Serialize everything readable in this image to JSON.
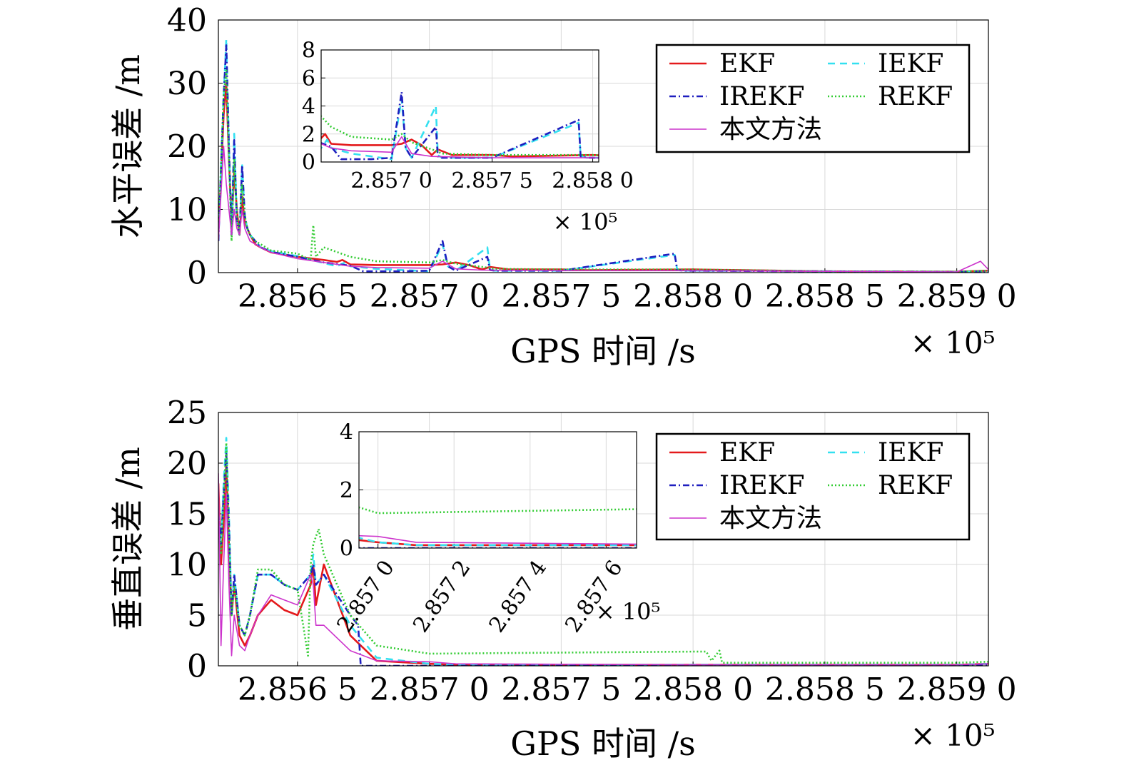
{
  "colors": {
    "EKF": "#e41a1c",
    "IREKF": "#1f1fbf",
    "method": "#cc33cc",
    "IEKF": "#33e0f0",
    "REKF": "#33cc33",
    "grid": "#d9d9d9",
    "frame": "#000000"
  },
  "chart_data": [
    {
      "type": "line",
      "ylabel": "水平误差 /m",
      "xlabel": "GPS 时间 /s",
      "multiplier": "× 10⁵",
      "xlim": [
        2.8562,
        2.85912
      ],
      "ylim": [
        0,
        40
      ],
      "xticks": [
        2.8565,
        2.857,
        2.8575,
        2.858,
        2.8585,
        2.859
      ],
      "xtick_labels": [
        "2.856 5",
        "2.857 0",
        "2.857 5",
        "2.858 0",
        "2.858 5",
        "2.859 0"
      ],
      "yticks": [
        0,
        10,
        20,
        30,
        40
      ],
      "ytick_labels": [
        "0",
        "10",
        "20",
        "30",
        "40"
      ],
      "legend": {
        "position": "top-right",
        "entries": [
          {
            "key": "EKF",
            "label": "EKF"
          },
          {
            "key": "IEKF",
            "label": "IEKF"
          },
          {
            "key": "IREKF",
            "label": "IREKF"
          },
          {
            "key": "REKF",
            "label": "REKF"
          },
          {
            "key": "method",
            "label": "本文方法"
          }
        ]
      },
      "series": [
        {
          "name": "EKF",
          "key": "EKF",
          "x": [
            2.8562,
            2.85622,
            2.85623,
            2.85624,
            2.85625,
            2.85626,
            2.85627,
            2.85628,
            2.85629,
            2.8563,
            2.85631,
            2.85632,
            2.85634,
            2.85636,
            2.8564,
            2.8565,
            2.8566,
            2.85665,
            2.85667,
            2.8567,
            2.8568,
            2.8569,
            2.857,
            2.85705,
            2.8571,
            2.85715,
            2.8572,
            2.85723,
            2.8573,
            2.8575,
            2.8576,
            2.858,
            2.8585,
            2.859,
            2.85912
          ],
          "y": [
            6,
            25,
            30,
            18,
            8,
            16,
            10,
            6,
            12,
            8,
            7,
            6,
            4.5,
            4,
            3.2,
            2.5,
            2.0,
            1.7,
            2.0,
            1.3,
            1.2,
            1.2,
            1.2,
            1.3,
            1.6,
            1.2,
            0.5,
            0.9,
            0.5,
            0.5,
            0.4,
            0.5,
            0.2,
            0.15,
            0.3
          ]
        },
        {
          "name": "IEKF",
          "key": "IEKF",
          "x": [
            2.8562,
            2.85622,
            2.85623,
            2.85624,
            2.85625,
            2.85626,
            2.85627,
            2.85628,
            2.85629,
            2.8563,
            2.85631,
            2.85632,
            2.85634,
            2.85636,
            2.8564,
            2.8565,
            2.8566,
            2.85665,
            2.85668,
            2.8567,
            2.8568,
            2.857,
            2.85705,
            2.85707,
            2.8571,
            2.85722,
            2.85723,
            2.85725,
            2.8575,
            2.85793,
            2.85794,
            2.85797,
            2.858,
            2.8585,
            2.859,
            2.85912
          ],
          "y": [
            5,
            28,
            37,
            20,
            6,
            22,
            8,
            6,
            17,
            9,
            7,
            6,
            5,
            4,
            3.4,
            2.6,
            1.5,
            1.0,
            1.6,
            1.0,
            0.6,
            0.2,
            4.5,
            1.0,
            0.3,
            4.0,
            0.5,
            0.3,
            0.3,
            2.8,
            0.4,
            0.3,
            0.3,
            0.2,
            0.1,
            0.2
          ]
        },
        {
          "name": "IREKF",
          "key": "IREKF",
          "x": [
            2.8562,
            2.85622,
            2.85623,
            2.85624,
            2.85625,
            2.85626,
            2.85627,
            2.85628,
            2.85629,
            2.8563,
            2.85631,
            2.85632,
            2.85634,
            2.85636,
            2.8564,
            2.8565,
            2.8566,
            2.8567,
            2.85675,
            2.8569,
            2.857,
            2.85705,
            2.85707,
            2.8571,
            2.85722,
            2.85723,
            2.85725,
            2.8575,
            2.85793,
            2.85794,
            2.85797,
            2.858,
            2.8585,
            2.859,
            2.85912
          ],
          "y": [
            5,
            28,
            36,
            20,
            6,
            21,
            8,
            6,
            17,
            9,
            7,
            6,
            5,
            4,
            3.3,
            2.5,
            1.6,
            1.1,
            0.2,
            0.2,
            0.3,
            5.0,
            1.0,
            0.3,
            2.5,
            0.4,
            0.3,
            0.3,
            3.0,
            0.4,
            0.3,
            0.3,
            0.2,
            0.1,
            0.2
          ]
        },
        {
          "name": "REKF",
          "key": "REKF",
          "x": [
            2.8562,
            2.85622,
            2.85623,
            2.85624,
            2.85625,
            2.85626,
            2.85627,
            2.85628,
            2.85629,
            2.8563,
            2.85631,
            2.85632,
            2.85634,
            2.85636,
            2.8564,
            2.8565,
            2.85655,
            2.85656,
            2.85657,
            2.8566,
            2.8567,
            2.8568,
            2.857,
            2.85705,
            2.8571,
            2.85722,
            2.85725,
            2.8575,
            2.858,
            2.8585,
            2.859,
            2.85912
          ],
          "y": [
            6,
            28,
            32,
            18,
            5,
            18,
            9,
            6,
            14,
            9,
            7,
            6,
            5,
            4.5,
            3.5,
            3.0,
            2.0,
            7.5,
            2.5,
            4.0,
            2.5,
            1.8,
            1.6,
            2.0,
            1.4,
            0.8,
            0.6,
            0.5,
            0.5,
            0.2,
            0.15,
            0.3
          ]
        },
        {
          "name": "本文方法",
          "key": "method",
          "x": [
            2.8562,
            2.85622,
            2.85623,
            2.85624,
            2.85625,
            2.85626,
            2.85627,
            2.85628,
            2.85629,
            2.8563,
            2.85631,
            2.85632,
            2.85634,
            2.85636,
            2.8564,
            2.8565,
            2.8566,
            2.8567,
            2.8568,
            2.857,
            2.85705,
            2.8571,
            2.8572,
            2.8575,
            2.858,
            2.8585,
            2.859,
            2.85909,
            2.85912
          ],
          "y": [
            5,
            20,
            14,
            10,
            6,
            10,
            7,
            6,
            10,
            7,
            6,
            5,
            4.5,
            4,
            3.2,
            2.2,
            1.6,
            1.0,
            0.8,
            0.7,
            1.8,
            0.6,
            0.4,
            0.3,
            0.3,
            0.2,
            0.1,
            1.8,
            0.5
          ]
        }
      ],
      "inset": {
        "xlim": [
          2.85665,
          2.85803
        ],
        "ylim": [
          0,
          8
        ],
        "xticks": [
          2.857,
          2.8575,
          2.858
        ],
        "xtick_labels": [
          "2.857 0",
          "2.857 5",
          "2.858 0"
        ],
        "yticks": [
          0,
          2,
          4,
          6,
          8
        ],
        "ytick_labels": [
          "0",
          "2",
          "4",
          "6",
          "8"
        ],
        "multiplier": "× 10⁵"
      }
    },
    {
      "type": "line",
      "ylabel": "垂直误差 /m",
      "xlabel": "GPS 时间 /s",
      "multiplier": "× 10⁵",
      "xlim": [
        2.8562,
        2.85912
      ],
      "ylim": [
        0,
        25
      ],
      "xticks": [
        2.8565,
        2.857,
        2.8575,
        2.858,
        2.8585,
        2.859
      ],
      "xtick_labels": [
        "2.856 5",
        "2.857 0",
        "2.857 5",
        "2.858 0",
        "2.858 5",
        "2.859 0"
      ],
      "yticks": [
        0,
        5,
        10,
        15,
        20,
        25
      ],
      "ytick_labels": [
        "0",
        "5",
        "10",
        "15",
        "20",
        "25"
      ],
      "legend": {
        "position": "top-right",
        "entries": [
          {
            "key": "EKF",
            "label": "EKF"
          },
          {
            "key": "IEKF",
            "label": "IEKF"
          },
          {
            "key": "IREKF",
            "label": "IREKF"
          },
          {
            "key": "REKF",
            "label": "REKF"
          },
          {
            "key": "method",
            "label": "本文方法"
          }
        ]
      },
      "series": [
        {
          "name": "EKF",
          "key": "EKF",
          "x": [
            2.8562,
            2.85621,
            2.85622,
            2.85623,
            2.85624,
            2.85625,
            2.85626,
            2.85628,
            2.8563,
            2.85632,
            2.85635,
            2.8564,
            2.85645,
            2.8565,
            2.85655,
            2.85656,
            2.85657,
            2.8566,
            2.8567,
            2.8568,
            2.857,
            2.8571,
            2.858,
            2.8585,
            2.859,
            2.85912
          ],
          "y": [
            18,
            10,
            14,
            20,
            12,
            5,
            8,
            3,
            2,
            3,
            5,
            6.5,
            5.5,
            5,
            8,
            10,
            6,
            10,
            3,
            0.5,
            0.2,
            0.1,
            0.1,
            0.1,
            0.1,
            0.2
          ]
        },
        {
          "name": "IEKF",
          "key": "IEKF",
          "x": [
            2.8562,
            2.85621,
            2.85622,
            2.85623,
            2.85624,
            2.85625,
            2.85626,
            2.85628,
            2.8563,
            2.85632,
            2.85635,
            2.8564,
            2.85645,
            2.8565,
            2.85655,
            2.85656,
            2.85657,
            2.8566,
            2.8567,
            2.8568,
            2.857,
            2.8571,
            2.858,
            2.8585,
            2.859,
            2.85912
          ],
          "y": [
            15,
            12,
            18,
            22.5,
            15,
            5,
            9,
            4,
            3,
            5,
            9,
            9,
            8,
            7.5,
            9,
            11,
            8,
            9,
            4,
            0.8,
            0.2,
            0.1,
            0.1,
            0.1,
            0.1,
            0.2
          ]
        },
        {
          "name": "IREKF",
          "key": "IREKF",
          "x": [
            2.8562,
            2.85621,
            2.85622,
            2.85623,
            2.85624,
            2.85625,
            2.85626,
            2.85628,
            2.8563,
            2.85632,
            2.85635,
            2.8564,
            2.85645,
            2.8565,
            2.85655,
            2.85656,
            2.85657,
            2.8566,
            2.8567,
            2.85673,
            2.85674,
            2.857,
            2.858,
            2.8585,
            2.859,
            2.85912
          ],
          "y": [
            15,
            12,
            17,
            21,
            14,
            5,
            9,
            4,
            3,
            5,
            9,
            9,
            8,
            7.5,
            9,
            10,
            8,
            9,
            5,
            4,
            0,
            0,
            0,
            0,
            0,
            0.1
          ]
        },
        {
          "name": "REKF",
          "key": "REKF",
          "x": [
            2.8562,
            2.85621,
            2.85622,
            2.85623,
            2.85624,
            2.85625,
            2.85626,
            2.85628,
            2.8563,
            2.85632,
            2.85635,
            2.8564,
            2.85645,
            2.8565,
            2.85654,
            2.85655,
            2.85656,
            2.85658,
            2.8566,
            2.8567,
            2.8568,
            2.857,
            2.8575,
            2.858,
            2.85805,
            2.85807,
            2.8581,
            2.85811,
            2.859,
            2.85912
          ],
          "y": [
            14,
            11,
            16,
            22,
            13,
            5,
            8,
            4,
            3,
            5,
            9.5,
            9.5,
            8,
            7.5,
            1,
            10,
            12,
            13.5,
            11,
            5,
            2,
            1.2,
            1.3,
            1.4,
            1.4,
            0.5,
            1.5,
            0.3,
            0.3,
            0.4
          ]
        },
        {
          "name": "本文方法",
          "key": "method",
          "x": [
            2.8562,
            2.85621,
            2.85622,
            2.85623,
            2.85624,
            2.85625,
            2.85626,
            2.85628,
            2.8563,
            2.85632,
            2.85635,
            2.8564,
            2.85645,
            2.8565,
            2.85655,
            2.85656,
            2.85657,
            2.8566,
            2.8567,
            2.8568,
            2.857,
            2.8571,
            2.858,
            2.8585,
            2.859,
            2.85912
          ],
          "y": [
            19,
            2,
            10,
            17,
            8,
            1,
            5,
            2,
            1.5,
            3,
            5,
            7,
            6.5,
            6,
            9,
            8,
            4,
            4,
            1.5,
            0.5,
            0.4,
            0.2,
            0.1,
            0.1,
            0.1,
            0.2
          ]
        }
      ],
      "inset": {
        "xlim": [
          2.85695,
          2.85768
        ],
        "ylim": [
          0,
          4
        ],
        "xticks": [
          2.857,
          2.8572,
          2.8574,
          2.8576
        ],
        "xtick_labels": [
          "2.857 0",
          "2.857 2",
          "2.857 4",
          "2.857 6"
        ],
        "yticks": [
          0,
          2,
          4
        ],
        "ytick_labels": [
          "0",
          "2",
          "4"
        ],
        "multiplier": "× 10⁵"
      }
    }
  ]
}
